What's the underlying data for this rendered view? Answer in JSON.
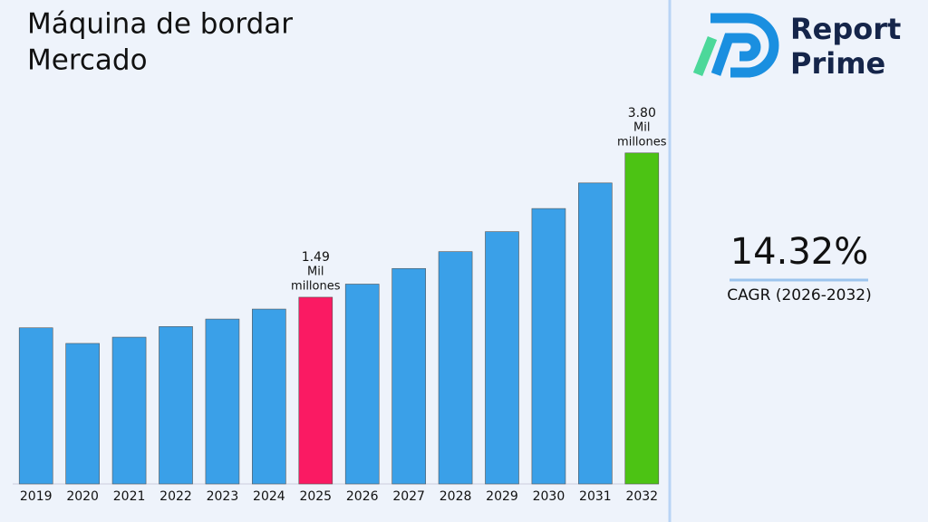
{
  "chart_data": {
    "type": "bar",
    "title": [
      "Máquina de bordar",
      "Mercado"
    ],
    "categories": [
      "2019",
      "2020",
      "2021",
      "2022",
      "2023",
      "2024",
      "2025",
      "2026",
      "2027",
      "2028",
      "2029",
      "2030",
      "2031",
      "2032"
    ],
    "values": [
      1.0,
      0.75,
      0.85,
      1.02,
      1.14,
      1.3,
      1.49,
      1.7,
      1.95,
      2.22,
      2.54,
      2.91,
      3.32,
      3.8
    ],
    "value_labels": [
      null,
      null,
      null,
      null,
      null,
      null,
      "1.49",
      null,
      null,
      null,
      null,
      null,
      null,
      "3.80"
    ],
    "value_unit": [
      "Mil",
      "millones"
    ],
    "colors": [
      "#3aa0e8",
      "#3aa0e8",
      "#3aa0e8",
      "#3aa0e8",
      "#3aa0e8",
      "#3aa0e8",
      "#fa1a63",
      "#3aa0e8",
      "#3aa0e8",
      "#3aa0e8",
      "#3aa0e8",
      "#3aa0e8",
      "#3aa0e8",
      "#4cc314"
    ],
    "ylim": [
      -1.5,
      4.0
    ]
  },
  "side_panel": {
    "brand": [
      "Report",
      "Prime"
    ],
    "cagr_value": "14.32%",
    "cagr_label": "CAGR (2026-2032)"
  }
}
